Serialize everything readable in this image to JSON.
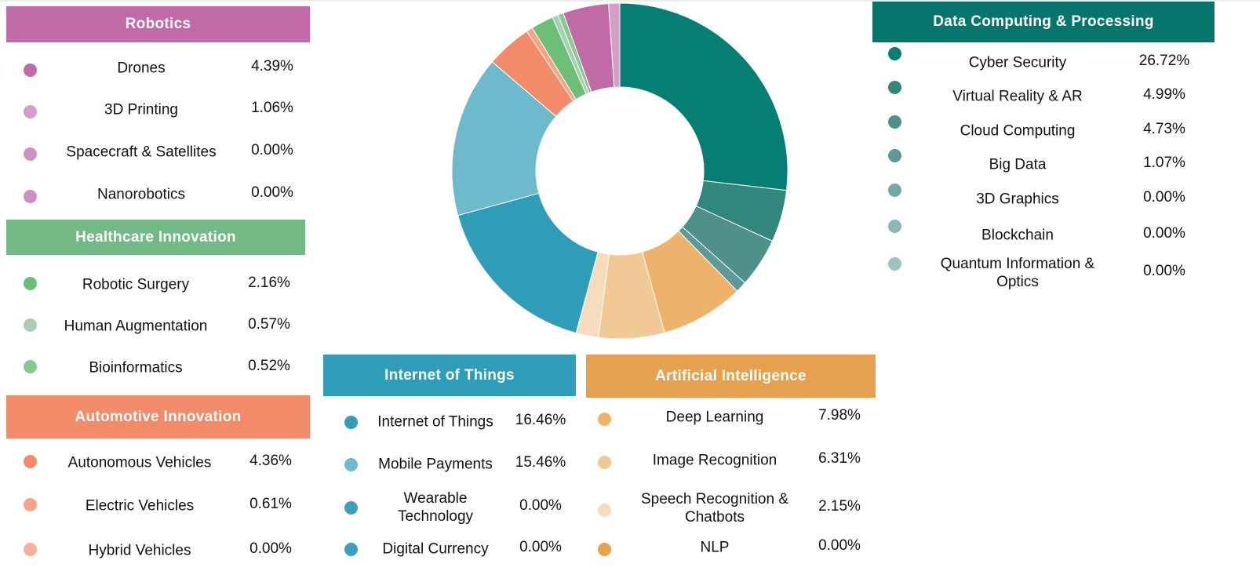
{
  "chart_data": {
    "type": "donut",
    "groups": [
      {
        "title": "Data Computing & Processing",
        "color": "#06756c",
        "names": [
          "Cyber Security",
          "Virtual Reality & AR",
          "Cloud Computing",
          "Big Data",
          "3D Graphics",
          "Blockchain",
          "Quantum Information & Optics"
        ],
        "values": [
          26.72,
          4.99,
          4.73,
          1.07,
          0,
          0,
          0
        ],
        "value_labels": [
          "26.72%",
          "4.99%",
          "4.73%",
          "1.07%",
          "0.00%",
          "0.00%",
          "0.00%"
        ],
        "colors": [
          "#067e74",
          "#31877c",
          "#4e918b",
          "#5d9996",
          "#72a9a8",
          "#8ab8b6",
          "#99c2c0"
        ]
      },
      {
        "title": "Artificial Intelligence",
        "color": "#e5a14d",
        "names": [
          "Deep Learning",
          "Image Recognition",
          "Speech Recognition & Chatbots",
          "NLP"
        ],
        "values": [
          7.98,
          6.31,
          2.15,
          0
        ],
        "value_labels": [
          "7.98%",
          "6.31%",
          "2.15%",
          "0.00%"
        ],
        "colors": [
          "#edb36b",
          "#f1c995",
          "#f6dcbb",
          "#e8a04e"
        ]
      },
      {
        "title": "Internet of Things",
        "color": "#2f9cb8",
        "names": [
          "Internet of Things",
          "Mobile Payments",
          "Wearable Technology",
          "Digital Currency"
        ],
        "values": [
          16.46,
          15.46,
          0,
          0
        ],
        "value_labels": [
          "16.46%",
          "15.46%",
          "0.00%",
          "0.00%"
        ],
        "colors": [
          "#2f9cb8",
          "#6dbacc",
          "#3aa0bb",
          "#3aa0bb"
        ]
      },
      {
        "title": "Automotive Innovation",
        "color": "#f28b6a",
        "names": [
          "Autonomous Vehicles",
          "Electric Vehicles",
          "Hybrid Vehicles"
        ],
        "values": [
          4.36,
          0.61,
          0
        ],
        "value_labels": [
          "4.36%",
          "0.61%",
          "0.00%"
        ],
        "colors": [
          "#f28b6a",
          "#f5a585",
          "#f8b09a"
        ]
      },
      {
        "title": "Healthcare Innovation",
        "color": "#72b985",
        "names": [
          "Robotic Surgery",
          "Human Augmentation",
          "Bioinformatics"
        ],
        "values": [
          2.16,
          0.57,
          0.52
        ],
        "value_labels": [
          "2.16%",
          "0.57%",
          "0.52%"
        ],
        "colors": [
          "#6cbf76",
          "#a9cfb0",
          "#86c98f"
        ]
      },
      {
        "title": "Robotics",
        "color": "#c06aa8",
        "names": [
          "Drones",
          "3D Printing",
          "Spacecraft & Satellites",
          "Nanorobotics"
        ],
        "values": [
          4.39,
          1.06,
          0,
          0
        ],
        "value_labels": [
          "4.39%",
          "1.06%",
          "0.00%",
          "0.00%"
        ],
        "colors": [
          "#c06aa8",
          "#d59ec7",
          "#cf8fc0",
          "#cf8fc0"
        ]
      }
    ]
  }
}
